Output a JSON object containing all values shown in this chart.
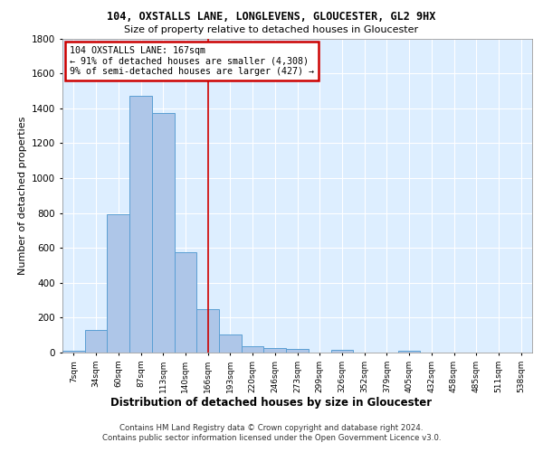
{
  "title1": "104, OXSTALLS LANE, LONGLEVENS, GLOUCESTER, GL2 9HX",
  "title2": "Size of property relative to detached houses in Gloucester",
  "xlabel": "Distribution of detached houses by size in Gloucester",
  "ylabel": "Number of detached properties",
  "bar_labels": [
    "7sqm",
    "34sqm",
    "60sqm",
    "87sqm",
    "113sqm",
    "140sqm",
    "166sqm",
    "193sqm",
    "220sqm",
    "246sqm",
    "273sqm",
    "299sqm",
    "326sqm",
    "352sqm",
    "379sqm",
    "405sqm",
    "432sqm",
    "458sqm",
    "485sqm",
    "511sqm",
    "538sqm"
  ],
  "bar_values": [
    10,
    130,
    790,
    1470,
    1375,
    575,
    250,
    105,
    35,
    25,
    20,
    0,
    15,
    0,
    0,
    10,
    0,
    0,
    0,
    0,
    0
  ],
  "bar_color": "#aec6e8",
  "bar_edgecolor": "#5a9fd4",
  "vline_x_index": 6,
  "annotation_title": "104 OXSTALLS LANE: 167sqm",
  "annotation_line1": "← 91% of detached houses are smaller (4,308)",
  "annotation_line2": "9% of semi-detached houses are larger (427) →",
  "annotation_box_color": "#ffffff",
  "annotation_box_edgecolor": "#cc0000",
  "vline_color": "#cc0000",
  "ylim": [
    0,
    1800
  ],
  "yticks": [
    0,
    200,
    400,
    600,
    800,
    1000,
    1200,
    1400,
    1600,
    1800
  ],
  "background_color": "#ddeeff",
  "grid_color": "#ffffff",
  "footnote1": "Contains HM Land Registry data © Crown copyright and database right 2024.",
  "footnote2": "Contains public sector information licensed under the Open Government Licence v3.0."
}
